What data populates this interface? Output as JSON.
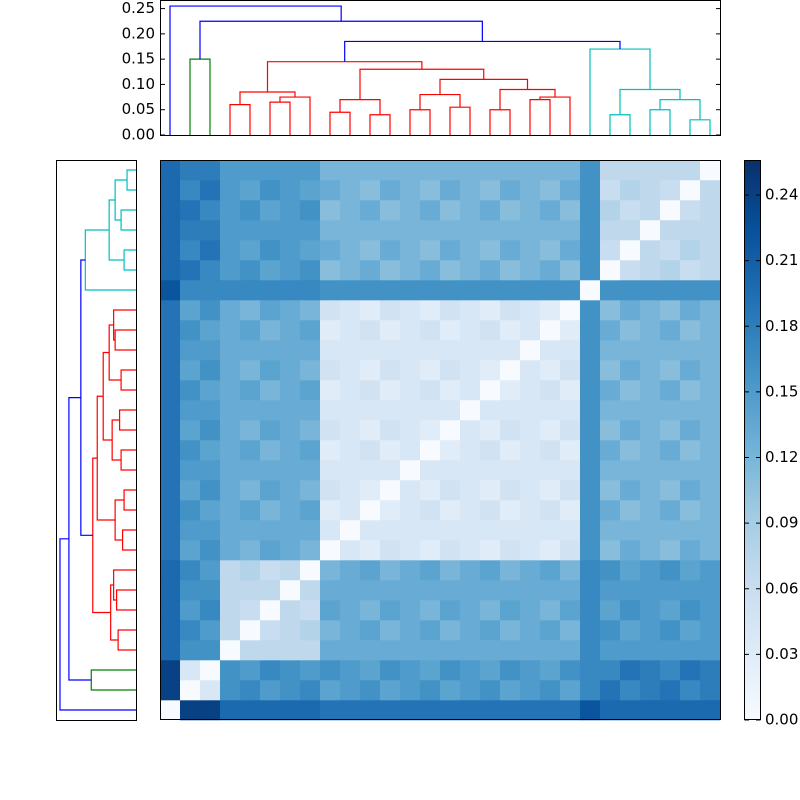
{
  "chart_data": {
    "type": "clustermap",
    "colormap": [
      "#f7fbff",
      "#deebf7",
      "#c6dbef",
      "#9ecae1",
      "#6baed6",
      "#4292c6",
      "#2171b5",
      "#08519c",
      "#08306b"
    ],
    "clim": [
      0,
      0.256
    ],
    "colorbar_ticks": [
      {
        "value": 0,
        "label": "0.00"
      },
      {
        "value": 0.03,
        "label": "0.03"
      },
      {
        "value": 0.06,
        "label": "0.06"
      },
      {
        "value": 0.09,
        "label": "0.09"
      },
      {
        "value": 0.12,
        "label": "0.12"
      },
      {
        "value": 0.15,
        "label": "0.15"
      },
      {
        "value": 0.18,
        "label": "0.18"
      },
      {
        "value": 0.21,
        "label": "0.21"
      },
      {
        "value": 0.24,
        "label": "0.24"
      }
    ],
    "dendrogram_ylim": [
      0,
      0.265
    ],
    "dendrogram_yticks": [
      {
        "value": 0,
        "label": "0.00"
      },
      {
        "value": 0.05,
        "label": "0.05"
      },
      {
        "value": 0.1,
        "label": "0.10"
      },
      {
        "value": 0.15,
        "label": "0.15"
      },
      {
        "value": 0.2,
        "label": "0.20"
      },
      {
        "value": 0.25,
        "label": "0.25"
      }
    ],
    "linkage": [
      {
        "left": 3,
        "right": 4,
        "height": 0.06,
        "color": "#ff0000"
      },
      {
        "left": 5,
        "right": 6,
        "height": 0.065,
        "color": "#ff0000"
      },
      {
        "left": 29,
        "right": 7,
        "height": 0.075,
        "color": "#ff0000"
      },
      {
        "left": 28,
        "right": 30,
        "height": 0.085,
        "color": "#ff0000"
      },
      {
        "left": 8,
        "right": 9,
        "height": 0.045,
        "color": "#ff0000"
      },
      {
        "left": 10,
        "right": 11,
        "height": 0.04,
        "color": "#ff0000"
      },
      {
        "left": 32,
        "right": 33,
        "height": 0.07,
        "color": "#ff0000"
      },
      {
        "left": 12,
        "right": 13,
        "height": 0.05,
        "color": "#ff0000"
      },
      {
        "left": 14,
        "right": 15,
        "height": 0.055,
        "color": "#ff0000"
      },
      {
        "left": 35,
        "right": 36,
        "height": 0.08,
        "color": "#ff0000"
      },
      {
        "left": 16,
        "right": 17,
        "height": 0.05,
        "color": "#ff0000"
      },
      {
        "left": 18,
        "right": 19,
        "height": 0.07,
        "color": "#ff0000"
      },
      {
        "left": 39,
        "right": 20,
        "height": 0.075,
        "color": "#ff0000"
      },
      {
        "left": 38,
        "right": 40,
        "height": 0.09,
        "color": "#ff0000"
      },
      {
        "left": 37,
        "right": 41,
        "height": 0.11,
        "color": "#ff0000"
      },
      {
        "left": 34,
        "right": 42,
        "height": 0.13,
        "color": "#ff0000"
      },
      {
        "left": 31,
        "right": 43,
        "height": 0.145,
        "color": "#ff0000"
      },
      {
        "left": 1,
        "right": 2,
        "height": 0.15,
        "color": "#008000"
      },
      {
        "left": 22,
        "right": 23,
        "height": 0.04,
        "color": "#00bfbf"
      },
      {
        "left": 24,
        "right": 25,
        "height": 0.05,
        "color": "#00bfbf"
      },
      {
        "left": 26,
        "right": 27,
        "height": 0.03,
        "color": "#00bfbf"
      },
      {
        "left": 47,
        "right": 48,
        "height": 0.07,
        "color": "#00bfbf"
      },
      {
        "left": 46,
        "right": 49,
        "height": 0.09,
        "color": "#00bfbf"
      },
      {
        "left": 21,
        "right": 50,
        "height": 0.17,
        "color": "#00bfbf"
      },
      {
        "left": 44,
        "right": 51,
        "height": 0.185,
        "color": "#0000ff"
      },
      {
        "left": 45,
        "right": 52,
        "height": 0.225,
        "color": "#0000ff"
      },
      {
        "left": 0,
        "right": 53,
        "height": 0.255,
        "color": "#0000ff"
      }
    ],
    "matrix": [
      [
        0,
        0.24,
        0.24,
        0.2,
        0.2,
        0.2,
        0.2,
        0.2,
        0.19,
        0.19,
        0.19,
        0.19,
        0.19,
        0.19,
        0.19,
        0.19,
        0.19,
        0.19,
        0.19,
        0.19,
        0.19,
        0.22,
        0.2,
        0.2,
        0.2,
        0.2,
        0.2,
        0.2
      ],
      [
        0.24,
        0,
        0.04,
        0.16,
        0.17,
        0.15,
        0.16,
        0.17,
        0.14,
        0.15,
        0.16,
        0.14,
        0.15,
        0.16,
        0.14,
        0.15,
        0.16,
        0.14,
        0.15,
        0.16,
        0.14,
        0.17,
        0.19,
        0.17,
        0.18,
        0.19,
        0.17,
        0.18
      ],
      [
        0.24,
        0.04,
        0,
        0.16,
        0.15,
        0.17,
        0.16,
        0.15,
        0.16,
        0.15,
        0.14,
        0.16,
        0.15,
        0.14,
        0.16,
        0.15,
        0.14,
        0.16,
        0.15,
        0.14,
        0.16,
        0.17,
        0.17,
        0.19,
        0.18,
        0.17,
        0.19,
        0.18
      ],
      [
        0.2,
        0.16,
        0.16,
        0,
        0.07,
        0.07,
        0.07,
        0.07,
        0.13,
        0.13,
        0.13,
        0.13,
        0.13,
        0.13,
        0.13,
        0.13,
        0.13,
        0.13,
        0.13,
        0.13,
        0.13,
        0.17,
        0.15,
        0.15,
        0.15,
        0.15,
        0.15,
        0.15
      ],
      [
        0.2,
        0.17,
        0.15,
        0.07,
        0,
        0.06,
        0.07,
        0.08,
        0.12,
        0.13,
        0.14,
        0.12,
        0.13,
        0.14,
        0.12,
        0.13,
        0.14,
        0.12,
        0.13,
        0.14,
        0.12,
        0.17,
        0.16,
        0.14,
        0.15,
        0.16,
        0.14,
        0.15
      ],
      [
        0.2,
        0.15,
        0.17,
        0.07,
        0.06,
        0,
        0.07,
        0.06,
        0.14,
        0.13,
        0.12,
        0.14,
        0.13,
        0.12,
        0.14,
        0.13,
        0.12,
        0.14,
        0.13,
        0.12,
        0.14,
        0.17,
        0.14,
        0.16,
        0.15,
        0.14,
        0.16,
        0.15
      ],
      [
        0.2,
        0.16,
        0.16,
        0.07,
        0.07,
        0.07,
        0,
        0.07,
        0.13,
        0.13,
        0.13,
        0.13,
        0.13,
        0.13,
        0.13,
        0.13,
        0.13,
        0.13,
        0.13,
        0.13,
        0.13,
        0.17,
        0.15,
        0.15,
        0.15,
        0.15,
        0.15,
        0.15
      ],
      [
        0.2,
        0.17,
        0.15,
        0.07,
        0.08,
        0.06,
        0.07,
        0,
        0.12,
        0.13,
        0.14,
        0.12,
        0.13,
        0.14,
        0.12,
        0.13,
        0.14,
        0.12,
        0.13,
        0.14,
        0.12,
        0.17,
        0.16,
        0.14,
        0.15,
        0.16,
        0.14,
        0.15
      ],
      [
        0.19,
        0.14,
        0.16,
        0.13,
        0.12,
        0.14,
        0.13,
        0.12,
        0,
        0.04,
        0.03,
        0.05,
        0.04,
        0.03,
        0.05,
        0.04,
        0.03,
        0.05,
        0.04,
        0.03,
        0.05,
        0.16,
        0.11,
        0.13,
        0.12,
        0.11,
        0.13,
        0.12
      ],
      [
        0.19,
        0.15,
        0.15,
        0.13,
        0.13,
        0.13,
        0.13,
        0.13,
        0.04,
        0,
        0.04,
        0.04,
        0.04,
        0.04,
        0.04,
        0.04,
        0.04,
        0.04,
        0.04,
        0.04,
        0.04,
        0.16,
        0.12,
        0.12,
        0.12,
        0.12,
        0.12,
        0.12
      ],
      [
        0.19,
        0.16,
        0.14,
        0.13,
        0.14,
        0.12,
        0.13,
        0.14,
        0.03,
        0.04,
        0,
        0.03,
        0.04,
        0.05,
        0.03,
        0.04,
        0.05,
        0.03,
        0.04,
        0.05,
        0.03,
        0.16,
        0.13,
        0.11,
        0.12,
        0.13,
        0.11,
        0.12
      ],
      [
        0.19,
        0.14,
        0.16,
        0.13,
        0.12,
        0.14,
        0.13,
        0.12,
        0.05,
        0.04,
        0.03,
        0,
        0.04,
        0.03,
        0.05,
        0.04,
        0.03,
        0.05,
        0.04,
        0.03,
        0.05,
        0.16,
        0.11,
        0.13,
        0.12,
        0.11,
        0.13,
        0.12
      ],
      [
        0.19,
        0.15,
        0.15,
        0.13,
        0.13,
        0.13,
        0.13,
        0.13,
        0.04,
        0.04,
        0.04,
        0.04,
        0,
        0.04,
        0.04,
        0.04,
        0.04,
        0.04,
        0.04,
        0.04,
        0.04,
        0.16,
        0.12,
        0.12,
        0.12,
        0.12,
        0.12,
        0.12
      ],
      [
        0.19,
        0.16,
        0.14,
        0.13,
        0.14,
        0.12,
        0.13,
        0.14,
        0.03,
        0.04,
        0.05,
        0.03,
        0.04,
        0,
        0.03,
        0.04,
        0.05,
        0.03,
        0.04,
        0.05,
        0.03,
        0.16,
        0.13,
        0.11,
        0.12,
        0.13,
        0.11,
        0.12
      ],
      [
        0.19,
        0.14,
        0.16,
        0.13,
        0.12,
        0.14,
        0.13,
        0.12,
        0.05,
        0.04,
        0.03,
        0.05,
        0.04,
        0.03,
        0,
        0.04,
        0.03,
        0.05,
        0.04,
        0.03,
        0.05,
        0.16,
        0.11,
        0.13,
        0.12,
        0.11,
        0.13,
        0.12
      ],
      [
        0.19,
        0.15,
        0.15,
        0.13,
        0.13,
        0.13,
        0.13,
        0.13,
        0.04,
        0.04,
        0.04,
        0.04,
        0.04,
        0.04,
        0.04,
        0,
        0.04,
        0.04,
        0.04,
        0.04,
        0.04,
        0.16,
        0.12,
        0.12,
        0.12,
        0.12,
        0.12,
        0.12
      ],
      [
        0.19,
        0.16,
        0.14,
        0.13,
        0.14,
        0.12,
        0.13,
        0.14,
        0.03,
        0.04,
        0.05,
        0.03,
        0.04,
        0.05,
        0.03,
        0.04,
        0,
        0.03,
        0.04,
        0.05,
        0.03,
        0.16,
        0.13,
        0.11,
        0.12,
        0.13,
        0.11,
        0.12
      ],
      [
        0.19,
        0.14,
        0.16,
        0.13,
        0.12,
        0.14,
        0.13,
        0.12,
        0.05,
        0.04,
        0.03,
        0.05,
        0.04,
        0.03,
        0.05,
        0.04,
        0.03,
        0,
        0.04,
        0.03,
        0.05,
        0.16,
        0.11,
        0.13,
        0.12,
        0.11,
        0.13,
        0.12
      ],
      [
        0.19,
        0.15,
        0.15,
        0.13,
        0.13,
        0.13,
        0.13,
        0.13,
        0.04,
        0.04,
        0.04,
        0.04,
        0.04,
        0.04,
        0.04,
        0.04,
        0.04,
        0.04,
        0,
        0.04,
        0.04,
        0.16,
        0.12,
        0.12,
        0.12,
        0.12,
        0.12,
        0.12
      ],
      [
        0.19,
        0.16,
        0.14,
        0.13,
        0.14,
        0.12,
        0.13,
        0.14,
        0.03,
        0.04,
        0.05,
        0.03,
        0.04,
        0.05,
        0.03,
        0.04,
        0.05,
        0.03,
        0.04,
        0,
        0.03,
        0.16,
        0.13,
        0.11,
        0.12,
        0.13,
        0.11,
        0.12
      ],
      [
        0.19,
        0.14,
        0.16,
        0.13,
        0.12,
        0.14,
        0.13,
        0.12,
        0.05,
        0.04,
        0.03,
        0.05,
        0.04,
        0.03,
        0.05,
        0.04,
        0.03,
        0.05,
        0.04,
        0.03,
        0,
        0.16,
        0.11,
        0.13,
        0.12,
        0.11,
        0.13,
        0.12
      ],
      [
        0.22,
        0.17,
        0.17,
        0.17,
        0.17,
        0.17,
        0.17,
        0.17,
        0.16,
        0.16,
        0.16,
        0.16,
        0.16,
        0.16,
        0.16,
        0.16,
        0.16,
        0.16,
        0.16,
        0.16,
        0.16,
        0,
        0.16,
        0.16,
        0.16,
        0.16,
        0.16,
        0.16
      ],
      [
        0.2,
        0.19,
        0.17,
        0.15,
        0.16,
        0.14,
        0.15,
        0.16,
        0.11,
        0.12,
        0.13,
        0.11,
        0.12,
        0.13,
        0.11,
        0.12,
        0.13,
        0.11,
        0.12,
        0.13,
        0.11,
        0.16,
        0,
        0.06,
        0.07,
        0.08,
        0.06,
        0.07
      ],
      [
        0.2,
        0.17,
        0.19,
        0.15,
        0.14,
        0.16,
        0.15,
        0.14,
        0.13,
        0.12,
        0.11,
        0.13,
        0.12,
        0.11,
        0.13,
        0.12,
        0.11,
        0.13,
        0.12,
        0.11,
        0.13,
        0.16,
        0.06,
        0,
        0.07,
        0.06,
        0.08,
        0.07
      ],
      [
        0.2,
        0.18,
        0.18,
        0.15,
        0.15,
        0.15,
        0.15,
        0.15,
        0.12,
        0.12,
        0.12,
        0.12,
        0.12,
        0.12,
        0.12,
        0.12,
        0.12,
        0.12,
        0.12,
        0.12,
        0.12,
        0.16,
        0.07,
        0.07,
        0,
        0.07,
        0.07,
        0.07
      ],
      [
        0.2,
        0.19,
        0.17,
        0.15,
        0.16,
        0.14,
        0.15,
        0.16,
        0.11,
        0.12,
        0.13,
        0.11,
        0.12,
        0.13,
        0.11,
        0.12,
        0.13,
        0.11,
        0.12,
        0.13,
        0.11,
        0.16,
        0.08,
        0.06,
        0.07,
        0,
        0.06,
        0.07
      ],
      [
        0.2,
        0.17,
        0.19,
        0.15,
        0.14,
        0.16,
        0.15,
        0.14,
        0.13,
        0.12,
        0.11,
        0.13,
        0.12,
        0.11,
        0.13,
        0.12,
        0.11,
        0.13,
        0.12,
        0.11,
        0.13,
        0.16,
        0.06,
        0.08,
        0.07,
        0.06,
        0,
        0.07
      ],
      [
        0.2,
        0.18,
        0.18,
        0.15,
        0.15,
        0.15,
        0.15,
        0.15,
        0.12,
        0.12,
        0.12,
        0.12,
        0.12,
        0.12,
        0.12,
        0.12,
        0.12,
        0.12,
        0.12,
        0.12,
        0.12,
        0.16,
        0.07,
        0.07,
        0.07,
        0.07,
        0.07,
        0
      ]
    ]
  }
}
